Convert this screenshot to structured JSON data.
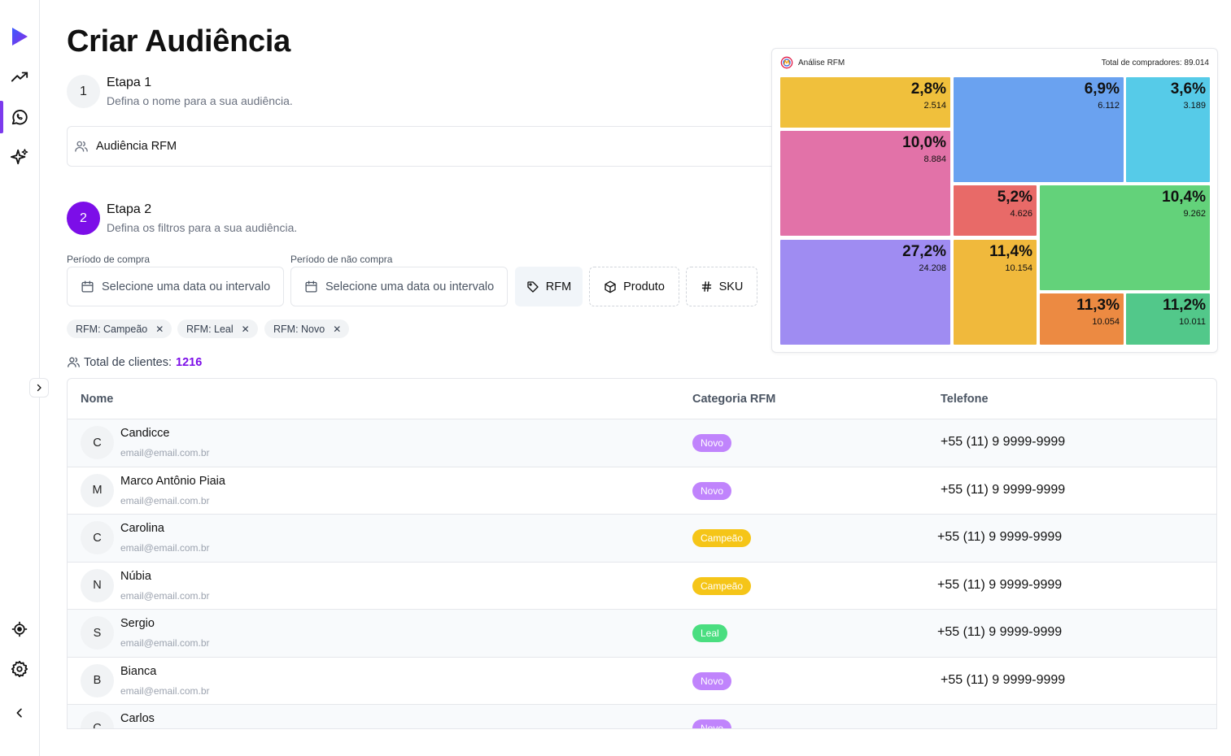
{
  "sidebar": {
    "icons": [
      "play-logo-icon",
      "trending-icon",
      "whatsapp-icon",
      "sparkle-icon",
      "target-icon",
      "gear-icon",
      "chevron-left-icon"
    ],
    "accent": "#7c3aed"
  },
  "page": {
    "title": "Criar Audiência"
  },
  "step1": {
    "number": "1",
    "title": "Etapa 1",
    "description": "Defina o nome para a sua audiência."
  },
  "audience_name": {
    "value": "Audiência RFM"
  },
  "step2": {
    "number": "2",
    "title": "Etapa 2",
    "description": "Defina os filtros para a sua audiência."
  },
  "filters": {
    "purchase_period_label": "Período de compra",
    "purchase_period_placeholder": "Selecione uma data ou intervalo",
    "no_purchase_period_label": "Período de não compra",
    "no_purchase_period_placeholder": "Selecione uma data ou intervalo",
    "rfm_button": "RFM",
    "product_button": "Produto",
    "sku_button": "SKU"
  },
  "chips": [
    {
      "label": "RFM: Campeão"
    },
    {
      "label": "RFM: Leal"
    },
    {
      "label": "RFM: Novo"
    }
  ],
  "total_clients": {
    "label": "Total de clientes:",
    "value": "1216"
  },
  "table": {
    "headers": {
      "name": "Nome",
      "category": "Categoria RFM",
      "phone": "Telefone"
    },
    "rows": [
      {
        "initial": "C",
        "name": "Candicce",
        "email": "email@email.com.br",
        "category": "Novo",
        "color": "#c084fc",
        "phone": "+55 (11) 9 9999-9999"
      },
      {
        "initial": "M",
        "name": "Marco Antônio Piaia",
        "email": "email@email.com.br",
        "category": "Novo",
        "color": "#c084fc",
        "phone": "+55 (11) 9 9999-9999"
      },
      {
        "initial": "C",
        "name": "Carolina",
        "email": "email@email.com.br",
        "category": "Campeão",
        "color": "#f5c518",
        "phone": "+55 (11) 9 9999-9999"
      },
      {
        "initial": "N",
        "name": "Núbia",
        "email": "email@email.com.br",
        "category": "Campeão",
        "color": "#f5c518",
        "phone": "+55 (11) 9 9999-9999"
      },
      {
        "initial": "S",
        "name": "Sergio",
        "email": "email@email.com.br",
        "category": "Leal",
        "color": "#4ade80",
        "phone": "+55 (11) 9 9999-9999"
      },
      {
        "initial": "B",
        "name": "Bianca",
        "email": "email@email.com.br",
        "category": "Novo",
        "color": "#c084fc",
        "phone": "+55 (11) 9 9999-9999"
      },
      {
        "initial": "C",
        "name": "Carlos",
        "email": "",
        "category": "Novo",
        "color": "#c084fc",
        "phone": ""
      }
    ]
  },
  "rfm_panel": {
    "title": "Análise RFM",
    "total_label": "Total de compradores: 89.014",
    "cells": [
      {
        "pct": "2,8%",
        "count": "2.514",
        "color": "#f0c03c"
      },
      {
        "pct": "6,9%",
        "count": "6.112",
        "color": "#6aa2f0"
      },
      {
        "pct": "3,6%",
        "count": "3.189",
        "color": "#56cbe8"
      },
      {
        "pct": "10,0%",
        "count": "8.884",
        "color": "#e272a8"
      },
      {
        "pct": "5,2%",
        "count": "4.626",
        "color": "#e86a68"
      },
      {
        "pct": "10,4%",
        "count": "9.262",
        "color": "#63d27a"
      },
      {
        "pct": "27,2%",
        "count": "24.208",
        "color": "#9f8cf2"
      },
      {
        "pct": "11,4%",
        "count": "10.154",
        "color": "#f0b93c"
      },
      {
        "pct": "11,3%",
        "count": "10.054",
        "color": "#ec8a42"
      },
      {
        "pct": "11,2%",
        "count": "10.011",
        "color": "#52c88a"
      }
    ]
  }
}
